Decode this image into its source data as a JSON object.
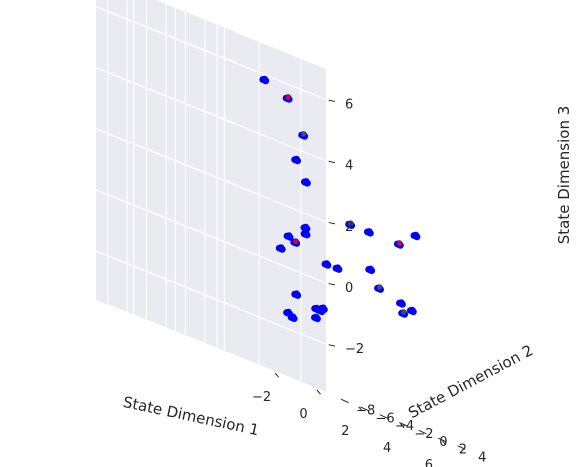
{
  "chart_data": {
    "type": "scatter",
    "projection": "3d",
    "style": "seaborn-darkgrid",
    "title": "",
    "xlabel": "State Dimension 1",
    "ylabel": "State Dimension 2",
    "zlabel": "State Dimension 3",
    "x_ticks": [
      "−2",
      "0",
      "2",
      "4",
      "6"
    ],
    "y_ticks": [
      "−8",
      "−6",
      "−4",
      "−2",
      "0",
      "2",
      "4"
    ],
    "z_ticks": [
      "−2",
      "0",
      "2",
      "4",
      "6"
    ],
    "grid": true,
    "colors": {
      "background": "#eaeaf2",
      "grid": "#ffffff",
      "primary": "#0000ff",
      "overlay": "#ff0000",
      "overlay_dark": "#555555"
    },
    "point_groups": [
      {
        "x": -2.5,
        "y": 5.3,
        "z": 5.8
      },
      {
        "x": -1.1,
        "y": 4.7,
        "z": 5.5,
        "overlay": "#ff0000"
      },
      {
        "x": 0.2,
        "y": 3.5,
        "z": 4.5,
        "overlay": "#555555"
      },
      {
        "x": -1.3,
        "y": 6.0,
        "z": 3.6
      },
      {
        "x": -0.6,
        "y": 5.5,
        "z": 3.0
      },
      {
        "x": -0.2,
        "y": 4.6,
        "z": 1.5
      },
      {
        "x": 2.4,
        "y": 3.6,
        "z": 2.2,
        "overlay": "#555555"
      },
      {
        "x": 3.2,
        "y": 3.8,
        "z": 2.2
      },
      {
        "x": 5.1,
        "y": 2.8,
        "z": 2.2,
        "overlay": "#ff0000"
      },
      {
        "x": 6.2,
        "y": 2.1,
        "z": 2.7,
        "size": "small"
      },
      {
        "x": 6.5,
        "y": 1.5,
        "z": 2.7
      },
      {
        "x": -0.8,
        "y": 5.9,
        "z": 1.3
      },
      {
        "x": -1.8,
        "y": 6.3,
        "z": 1.0
      },
      {
        "x": -2.5,
        "y": 7.0,
        "z": 0.5
      },
      {
        "x": 2.4,
        "y": 2.3,
        "z": 0.6
      },
      {
        "x": 5.9,
        "y": 1.3,
        "z": 0.3
      },
      {
        "x": 6.1,
        "y": 1.1,
        "z": 0.0,
        "overlay": "#555555"
      },
      {
        "x": 6.7,
        "y": 0.7,
        "z": 0.2
      },
      {
        "x": 0.1,
        "y": 3.0,
        "z": -0.8
      },
      {
        "x": 1.6,
        "y": 1.8,
        "z": -1.3
      },
      {
        "x": 0.3,
        "y": 2.2,
        "z": -1.6
      },
      {
        "x": 2.4,
        "y": 0.1,
        "z": -1.0
      },
      {
        "x": 6.2,
        "y": -1.6,
        "z": 0.5,
        "overlay": "#555555"
      },
      {
        "x": 1.2,
        "y": -0.2,
        "z": -1.5
      },
      {
        "x": 3.4,
        "y": -1.6,
        "z": -1.0
      },
      {
        "x": 3.7,
        "y": -2.0,
        "z": -0.9
      },
      {
        "x": 3.4,
        "y": -4.2,
        "z": 0.9,
        "overlay": "#ff0000"
      },
      {
        "x": 4.8,
        "y": -4.0,
        "z": 0.6
      },
      {
        "x": 6.8,
        "y": -3.8,
        "z": 1.0
      }
    ]
  }
}
